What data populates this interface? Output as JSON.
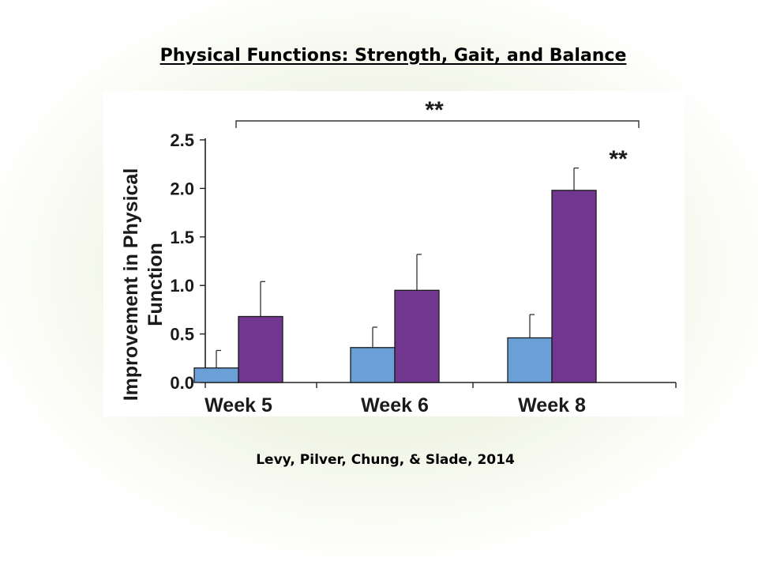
{
  "slide": {
    "title": "Physical Functions: Strength, Gait, and Balance",
    "citation": "Levy, Pilver, Chung, & Slade, 2014"
  },
  "chart_data": {
    "type": "bar",
    "title": "",
    "xlabel": "",
    "ylabel": "Improvement in Physical Function",
    "ylim": [
      0,
      2.5
    ],
    "yticks": [
      "0.0",
      "0.5",
      "1.0",
      "1.5",
      "2.0",
      "2.5"
    ],
    "categories": [
      "Week 5",
      "Week 6",
      "Week 8"
    ],
    "series": [
      {
        "color": "#6b9fd8",
        "values": [
          0.15,
          0.36,
          0.46
        ],
        "error": [
          0.18,
          0.21,
          0.24
        ]
      },
      {
        "color": "#71368f",
        "values": [
          0.68,
          0.95,
          1.98
        ],
        "error": [
          0.36,
          0.37,
          0.23
        ]
      }
    ],
    "annotations": {
      "bracket_label": "**",
      "week8_label": "**"
    },
    "grid": false,
    "legend": "none"
  }
}
